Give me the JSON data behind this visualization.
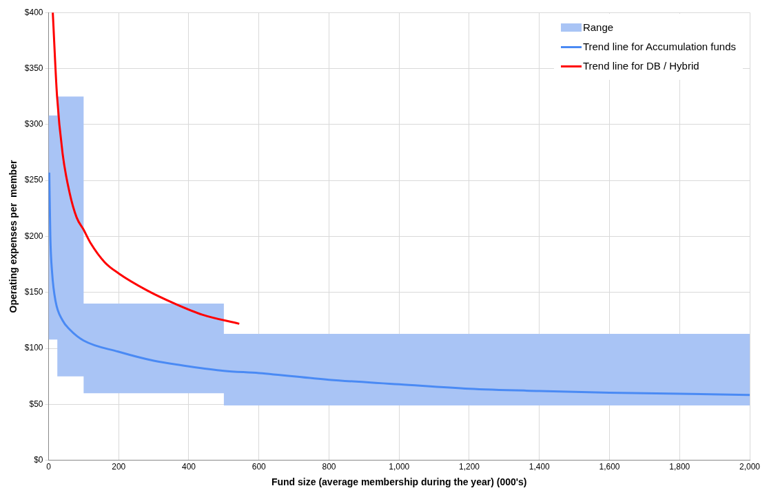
{
  "chart_data": {
    "type": "line",
    "xlabel": "Fund size (average membership during the year) (000's)",
    "ylabel": "Operating expenses per  member",
    "xlim": [
      0,
      2000
    ],
    "xticks": [
      0,
      200,
      400,
      600,
      800,
      {
        "value": 1000,
        "label": "1,000"
      },
      {
        "value": 1200,
        "label": "1,200"
      },
      {
        "value": 1400,
        "label": "1,400"
      },
      {
        "value": 1600,
        "label": "1,600"
      },
      {
        "value": 1800,
        "label": "1,800"
      },
      {
        "value": 2000,
        "label": "2,000"
      }
    ],
    "ylim": [
      0,
      400
    ],
    "yticks": [
      {
        "value": 0,
        "label": "$0"
      },
      {
        "value": 50,
        "label": "$50"
      },
      {
        "value": 100,
        "label": "$100"
      },
      {
        "value": 150,
        "label": "$150"
      },
      {
        "value": 200,
        "label": "$200"
      },
      {
        "value": 250,
        "label": "$250"
      },
      {
        "value": 300,
        "label": "$300"
      },
      {
        "value": 350,
        "label": "$350"
      },
      {
        "value": 400,
        "label": "$400"
      }
    ],
    "grid": true,
    "legend": "top right",
    "marker": "none",
    "line_style": "solid",
    "series": [
      {
        "name": "Range",
        "type": "area",
        "color": "#a9c4f5",
        "x": [
          0,
          25,
          25,
          100,
          100,
          500,
          500,
          2000
        ],
        "values": [
          null,
          null,
          null,
          null,
          null,
          null,
          null,
          null
        ],
        "lower": [
          108,
          108,
          75,
          75,
          60,
          60,
          49,
          49
        ],
        "upper": [
          308,
          308,
          325,
          325,
          140,
          140,
          113,
          113
        ]
      },
      {
        "name": "Trend line for Accumulation funds",
        "type": "line",
        "color": "#4a8af4",
        "x": [
          2,
          5,
          10,
          20,
          40,
          60,
          100,
          200,
          300,
          400,
          500,
          600,
          800,
          1000,
          1200,
          1400,
          1600,
          1800,
          2000
        ],
        "values": [
          257,
          200,
          168,
          142,
          125,
          117,
          107,
          97,
          89,
          84,
          80,
          78,
          72,
          68,
          64,
          62,
          60.5,
          59.5,
          58.5
        ]
      },
      {
        "name": "Trend line for DB / Hybrid",
        "type": "line",
        "color": "#ff0000",
        "x": [
          12,
          24,
          40,
          60,
          80,
          100,
          120,
          160,
          200,
          280,
          360,
          440,
          544
        ],
        "values": [
          400,
          326,
          274,
          239,
          217,
          206,
          194,
          177,
          167,
          152,
          140,
          130,
          122
        ]
      }
    ]
  }
}
